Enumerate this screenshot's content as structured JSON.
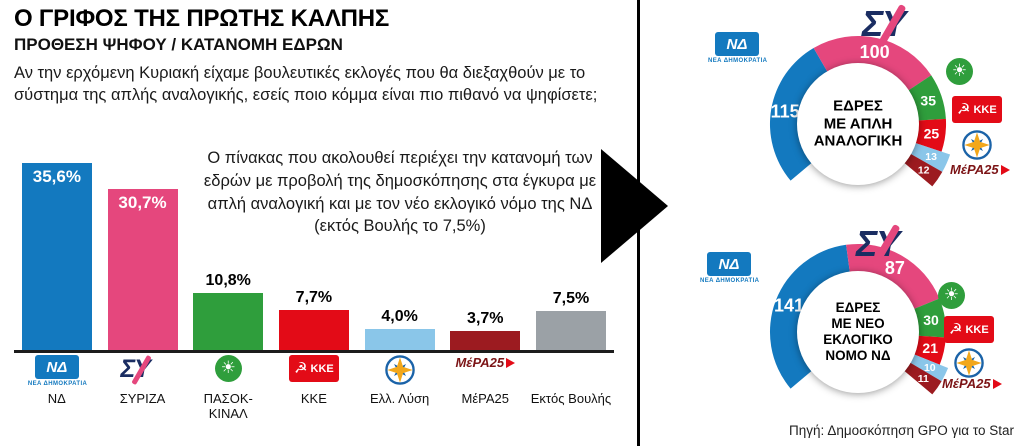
{
  "header": {
    "title": "Ο ΓΡΙΦΟΣ ΤΗΣ ΠΡΩΤΗΣ ΚΑΛΠΗΣ",
    "subtitle": "ΠΡΟΘΕΣΗ ΨΗΦΟΥ / ΚΑΤΑΝΟΜΗ ΕΔΡΩΝ"
  },
  "intro": {
    "question": "Αν την ερχόμενη Κυριακή είχαμε βουλευτικές εκλογές που θα διεξαχθούν με το σύστημα της απλής αναλογικής, εσείς ποιο κόμμα είναι πιο πιθανό να ψηφίσετε;",
    "note": "Ο πίνακας που ακολουθεί περιέχει την κατανομή των εδρών με προβολή της δημοσκόπησης στα έγκυρα με απλή αναλογική και με τον νέο εκλογικό νόμο της ΝΔ (εκτός Βουλής το 7,5%)"
  },
  "source": "Πηγή: Δημοσκόπηση GPO για το Star",
  "parties": [
    {
      "id": "nd",
      "name": "ΝΔ",
      "color": "#1379bf"
    },
    {
      "id": "syriza",
      "name": "ΣΥΡΙΖΑ",
      "color": "#e5477d"
    },
    {
      "id": "pasok",
      "name": "ΠΑΣΟΚ-ΚΙΝΑΛ",
      "color": "#2f9e3c"
    },
    {
      "id": "kke",
      "name": "ΚΚΕ",
      "color": "#e30b17"
    },
    {
      "id": "el",
      "name": "Ελλ. Λύση",
      "color": "#8ac6e9"
    },
    {
      "id": "mera",
      "name": "ΜέΡΑ25",
      "color": "#9c1b20"
    },
    {
      "id": "ektos",
      "name": "Εκτός Βουλής",
      "color": "#9ba1a6"
    }
  ],
  "logos": {
    "nd": {
      "abbr": "ΝΔ",
      "caption": "ΝΕΑ ΔΗΜΟΚΡΑΤΙΑ",
      "blue": "#1379bf"
    },
    "syriza": {
      "abbr": "ΣΥ",
      "navy": "#1a2d62",
      "pink": "#e5477d"
    },
    "pasok": {
      "sun": "☀",
      "green": "#2f9e3c"
    },
    "kke": {
      "symbol": "☭",
      "abbr": "ΚΚΕ",
      "red": "#e30b17"
    },
    "el": {
      "ring": "#1b63a8",
      "star": "#f2a71b"
    },
    "mera": {
      "abbr": "ΜέΡΑ25",
      "maroon": "#7c1416",
      "red": "#e30b17"
    }
  },
  "chart_data": [
    {
      "type": "bar",
      "title": "ΠΡΟΘΕΣΗ ΨΗΦΟΥ",
      "categories": [
        "ΝΔ",
        "ΣΥΡΙΖΑ",
        "ΠΑΣΟΚ-ΚΙΝΑΛ",
        "ΚΚΕ",
        "Ελλ. Λύση",
        "ΜέΡΑ25",
        "Εκτός Βουλής"
      ],
      "party_ids": [
        "nd",
        "syriza",
        "pasok",
        "kke",
        "el",
        "mera",
        "ektos"
      ],
      "values": [
        35.6,
        30.7,
        10.8,
        7.7,
        4.0,
        3.7,
        7.5
      ],
      "value_labels": [
        "35,6%",
        "30,7%",
        "10,8%",
        "7,7%",
        "4,0%",
        "3,7%",
        "7,5%"
      ],
      "unit": "%",
      "ylim": [
        0,
        40
      ],
      "grid": false,
      "legend": false
    },
    {
      "type": "donut-gauge",
      "title": "ΕΔΡΕΣ ΜΕ ΑΠΛΗ ΑΝΑΛΟΓΙΚΗ",
      "title_lines": [
        "ΕΔΡΕΣ",
        "ΜΕ ΑΠΛΗ",
        "ΑΝΑΛΟΓΙΚΗ"
      ],
      "party_ids": [
        "nd",
        "syriza",
        "pasok",
        "kke",
        "el",
        "mera"
      ],
      "values": [
        115,
        100,
        35,
        25,
        13,
        12
      ],
      "total_seats": 300
    },
    {
      "type": "donut-gauge",
      "title": "ΕΔΡΕΣ ΜΕ ΝΕΟ ΕΚΛΟΓΙΚΟ ΝΟΜΟ ΝΔ",
      "title_lines": [
        "ΕΔΡΕΣ",
        "ΜΕ ΝΕΟ",
        "ΕΚΛΟΓΙΚΟ",
        "ΝΟΜΟ ΝΔ"
      ],
      "party_ids": [
        "nd",
        "syriza",
        "pasok",
        "kke",
        "el",
        "mera"
      ],
      "values": [
        141,
        87,
        30,
        21,
        10,
        11
      ],
      "total_seats": 300
    }
  ]
}
